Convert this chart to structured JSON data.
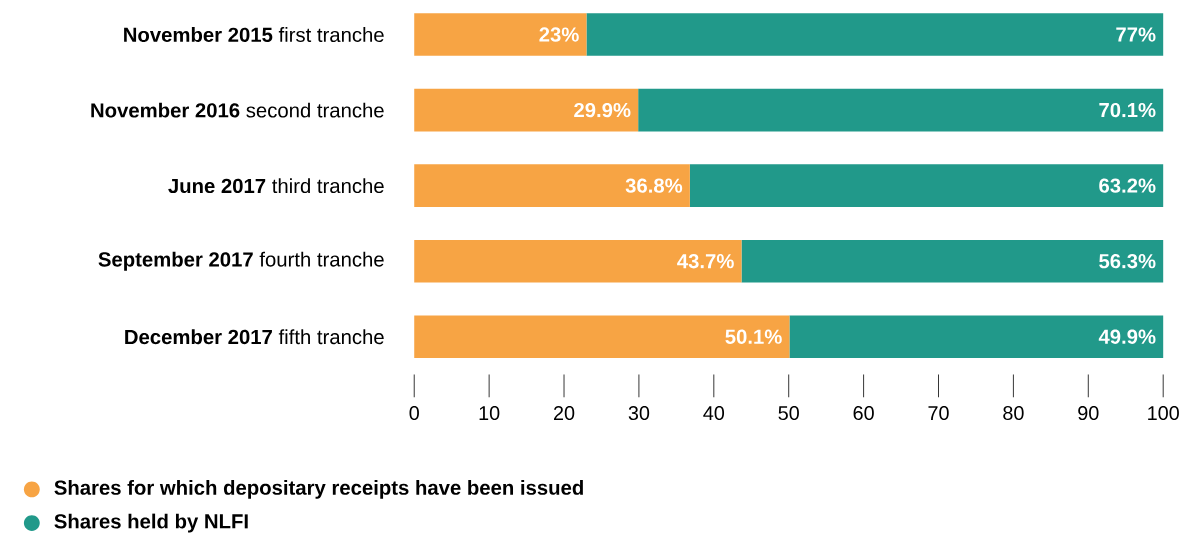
{
  "chart_data": {
    "type": "bar",
    "orientation": "horizontal",
    "stacked": true,
    "categories": [
      "**November 2015** first tranche",
      "**November 2016** second tranche",
      "**June 2017** third tranche",
      "**September 2017** fourth tranche",
      "**December 2017** fifth tranche"
    ],
    "series": [
      {
        "name": "Shares for which depositary receipts have been issued",
        "color": "#f7a444",
        "values": [
          23,
          29.9,
          36.8,
          43.7,
          50.1
        ],
        "value_labels": [
          "23%",
          "29.9%",
          "36.8%",
          "43.7%",
          "50.1%"
        ]
      },
      {
        "name": "Shares held by NLFI",
        "color": "#21998a",
        "values": [
          77,
          70.1,
          63.2,
          56.3,
          49.9
        ],
        "value_labels": [
          "77%",
          "70.1%",
          "63.2%",
          "56.3%",
          "49.9%"
        ]
      }
    ],
    "xlim": [
      0,
      100
    ],
    "xticks": [
      0,
      10,
      20,
      30,
      40,
      50,
      60,
      70,
      80,
      90,
      100
    ],
    "grid": false,
    "legend": "bottom left"
  }
}
